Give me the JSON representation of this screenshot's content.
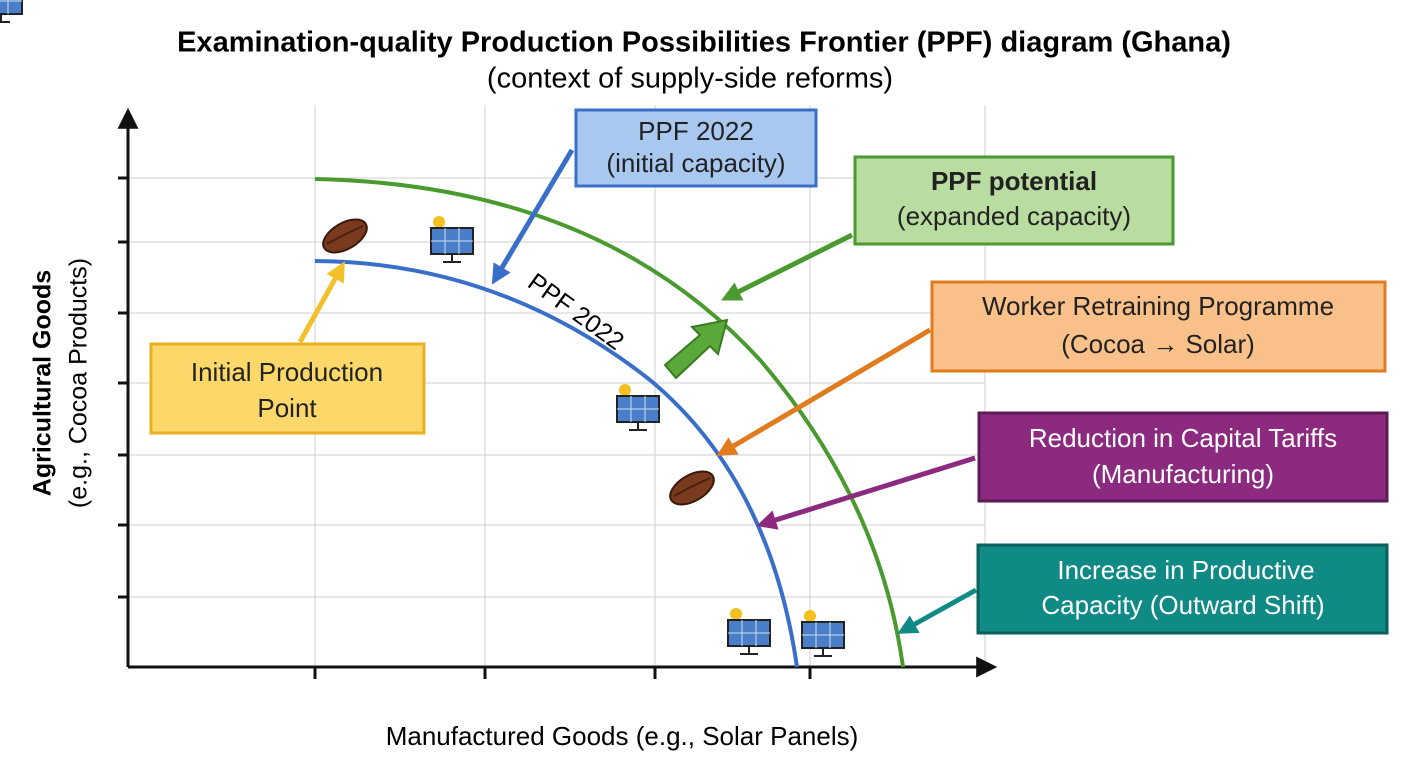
{
  "title": "Examination-quality Production Possibilities Frontier (PPF) diagram (Ghana)",
  "subtitle": "(context of supply-side reforms)",
  "y_label": [
    "Agricultural Goods",
    "(e.g., Cocoa Products)"
  ],
  "x_label": "Manufactured Goods (e.g., Solar Panels)",
  "curve_label": "PPF 2022",
  "callouts": [
    {
      "lines": [
        "PPF 2022",
        "(initial capacity)"
      ]
    },
    {
      "lines": [
        "PPF potential",
        "(expanded capacity)"
      ]
    },
    {
      "lines": [
        "Worker Retraining Programme",
        "(Cocoa → Solar)"
      ]
    },
    {
      "lines": [
        "Reduction in Capital Tariffs",
        "(Manufacturing)"
      ]
    },
    {
      "lines": [
        "Increase in Productive",
        "Capacity (Outward Shift)"
      ]
    },
    {
      "lines": [
        "Initial Production",
        "Point"
      ]
    }
  ]
}
